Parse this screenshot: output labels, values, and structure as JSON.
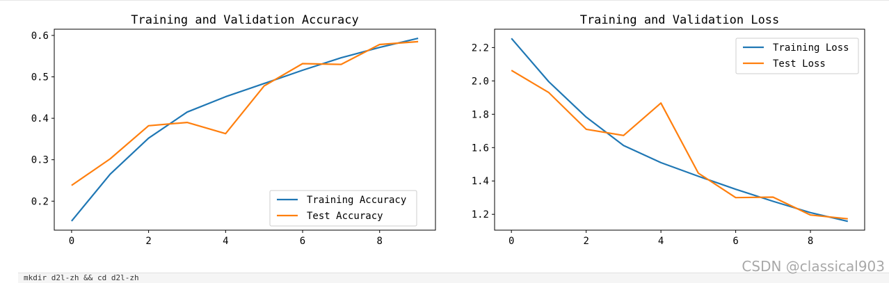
{
  "chart_data": [
    {
      "type": "line",
      "title": "Training and Validation Accuracy",
      "x": [
        0,
        1,
        2,
        3,
        4,
        5,
        6,
        7,
        8,
        9
      ],
      "series": [
        {
          "name": "Training Accuracy",
          "color": "#1f77b4",
          "values": [
            0.152,
            0.265,
            0.352,
            0.415,
            0.452,
            0.484,
            0.516,
            0.546,
            0.571,
            0.593
          ]
        },
        {
          "name": "Test Accuracy",
          "color": "#ff7f0e",
          "values": [
            0.238,
            0.302,
            0.382,
            0.39,
            0.363,
            0.478,
            0.532,
            0.53,
            0.578,
            0.585
          ]
        }
      ],
      "xticks": [
        "0",
        "2",
        "4",
        "6",
        "8"
      ],
      "yticks": [
        "0.2",
        "0.3",
        "0.4",
        "0.5",
        "0.6"
      ],
      "xlim": [
        -0.45,
        9.45
      ],
      "ylim": [
        0.13,
        0.615
      ],
      "grid": false,
      "legend": "lower right"
    },
    {
      "type": "line",
      "title": "Training and Validation Loss",
      "x": [
        0,
        1,
        2,
        3,
        4,
        5,
        6,
        7,
        8,
        9
      ],
      "series": [
        {
          "name": "Training Loss",
          "color": "#1f77b4",
          "values": [
            2.255,
            1.995,
            1.783,
            1.613,
            1.51,
            1.428,
            1.35,
            1.278,
            1.21,
            1.158
          ]
        },
        {
          "name": "Test Loss",
          "color": "#ff7f0e",
          "values": [
            2.063,
            1.93,
            1.71,
            1.673,
            1.867,
            1.447,
            1.3,
            1.303,
            1.196,
            1.173
          ]
        }
      ],
      "xticks": [
        "0",
        "2",
        "4",
        "6",
        "8"
      ],
      "yticks": [
        "1.2",
        "1.4",
        "1.6",
        "1.8",
        "2.0",
        "2.2"
      ],
      "xlim": [
        -0.45,
        9.45
      ],
      "ylim": [
        1.105,
        2.31
      ],
      "grid": false,
      "legend": "upper right"
    }
  ],
  "code_cell": {
    "text": "mkdir d2l-zh && cd d2l-zh"
  },
  "watermark": {
    "text": "CSDN @classical903"
  }
}
